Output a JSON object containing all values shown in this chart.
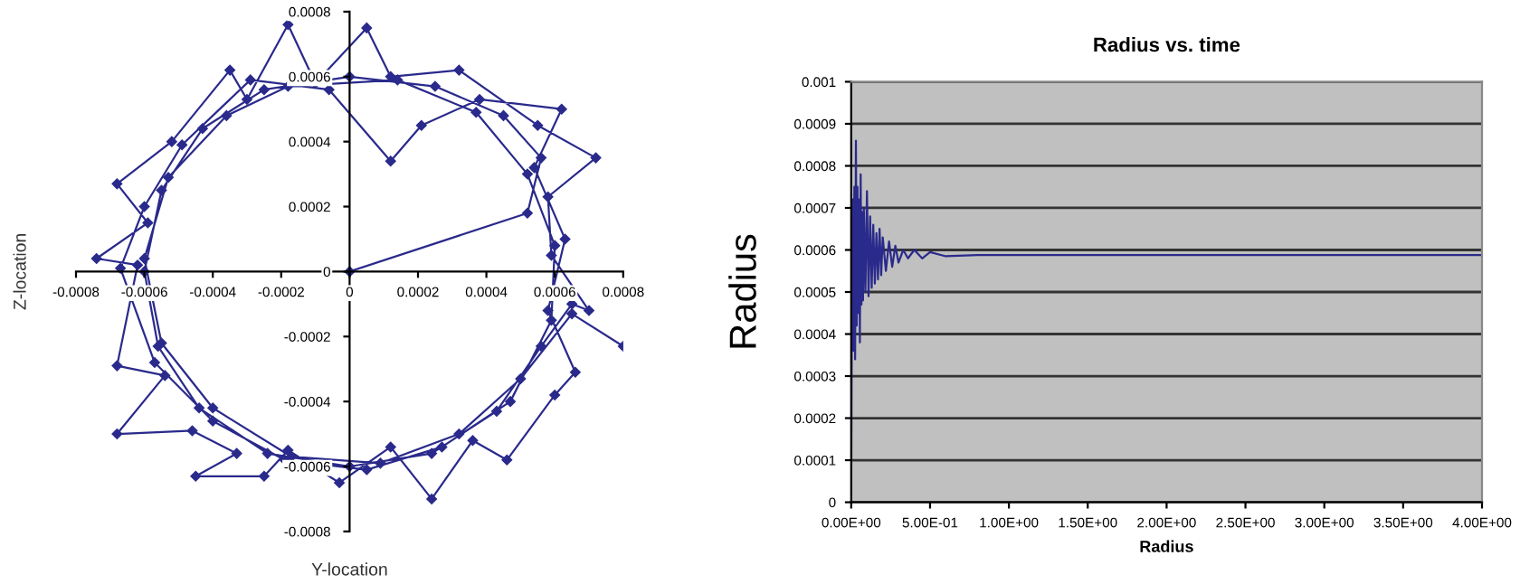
{
  "chart_data": [
    {
      "type": "line",
      "xlabel": "Y-location",
      "ylabel": "Z-location",
      "xlim": [
        -0.0008,
        0.0008
      ],
      "ylim": [
        -0.0008,
        0.0008
      ],
      "xticks": [
        -0.0008,
        -0.0006,
        -0.0004,
        -0.0002,
        0,
        0.0002,
        0.0004,
        0.0006,
        0.0008
      ],
      "yticks": [
        -0.0008,
        -0.0006,
        -0.0004,
        -0.0002,
        0,
        0.0002,
        0.0004,
        0.0006,
        0.0008
      ],
      "grid": false,
      "marker": "diamond",
      "line_style": "solid",
      "series": [
        {
          "color": "#2a2a8c",
          "x": [
            0,
            0.00052,
            0.00056,
            0.00045,
            0.00025,
            0,
            -0.00025,
            -0.00043,
            -0.00055,
            -0.0006,
            -0.00056,
            -0.00044,
            -0.00024,
            0,
            0.00024,
            0.00043,
            0.00056,
            0.00065,
            0.0007,
            0.00059,
            0.00058,
            0.00072,
            0.00055,
            0.00032,
            0.00012,
            5e-05,
            -0.0001,
            -0.00018,
            -0.0003,
            -0.00035,
            -0.00052,
            -0.00068,
            -0.00059,
            -0.00074,
            -0.00062,
            -0.00068,
            -0.00054,
            -0.00068,
            -0.00046,
            -0.00033,
            -0.00045,
            -0.00025,
            -0.00018,
            -3e-05,
            0.00012,
            0.00024,
            0.00036,
            0.00046,
            0.0006,
            0.00066,
            0.00058,
            0.00063,
            0.00054,
            0.00062,
            0.00038,
            0.00021,
            0.00012,
            -6e-05,
            -0.00029,
            -0.00049,
            -0.0006,
            -0.00067,
            -0.00057,
            -0.0004,
            -0.00019,
            5e-05,
            0.00027,
            0.00047,
            0.00059,
            0.0006,
            0.00052,
            0.00037,
            0.00014,
            -0.00018,
            -0.00036,
            -0.00053,
            -0.0006,
            -0.00055,
            -0.0004,
            -0.00017,
            9e-05,
            0.00032,
            0.0005,
            0.00065,
            0.0008
          ],
          "values": [
            0,
            0.00018,
            0.00035,
            0.00048,
            0.00057,
            0.0006,
            0.00056,
            0.00044,
            0.00025,
            0,
            -0.00023,
            -0.00042,
            -0.00056,
            -0.0006,
            -0.00056,
            -0.00043,
            -0.00023,
            -0.0001,
            -0.00012,
            5e-05,
            0.00023,
            0.00035,
            0.00045,
            0.00062,
            0.0006,
            0.00075,
            0.00058,
            0.00076,
            0.00053,
            0.00062,
            0.0004,
            0.00027,
            0.00015,
            4e-05,
            2e-05,
            -0.00029,
            -0.00032,
            -0.0005,
            -0.00049,
            -0.00056,
            -0.00063,
            -0.00063,
            -0.00055,
            -0.00065,
            -0.00054,
            -0.0007,
            -0.00052,
            -0.00058,
            -0.00038,
            -0.00031,
            -0.00012,
            0.0001,
            0.00032,
            0.0005,
            0.00053,
            0.00045,
            0.00034,
            0.00056,
            0.00059,
            0.00039,
            0.0002,
            1e-05,
            -0.00028,
            -0.00046,
            -0.00058,
            -0.00061,
            -0.00054,
            -0.0004,
            -0.00015,
            8e-05,
            0.0003,
            0.00049,
            0.00059,
            0.00057,
            0.00048,
            0.00029,
            4e-05,
            -0.00022,
            -0.00042,
            -0.00057,
            -0.00059,
            -0.0005,
            -0.00033,
            -0.00013,
            -0.00023
          ]
        }
      ]
    },
    {
      "type": "line",
      "title": "Radius vs. time",
      "xlabel": "Radius",
      "ylabel": "Radius",
      "xlim": [
        0,
        4
      ],
      "ylim": [
        0,
        0.001
      ],
      "xticks": [
        {
          "value": 0,
          "label": "0.00E+00"
        },
        {
          "value": 0.5,
          "label": "5.00E-01"
        },
        {
          "value": 1,
          "label": "1.00E+00"
        },
        {
          "value": 1.5,
          "label": "1.50E+00"
        },
        {
          "value": 2,
          "label": "2.00E+00"
        },
        {
          "value": 2.5,
          "label": "2.50E+00"
        },
        {
          "value": 3,
          "label": "3.00E+00"
        },
        {
          "value": 3.5,
          "label": "3.50E+00"
        },
        {
          "value": 4,
          "label": "4.00E+00"
        }
      ],
      "yticks": [
        0,
        0.0001,
        0.0002,
        0.0003,
        0.0004,
        0.0005,
        0.0006,
        0.0007,
        0.0008,
        0.0009,
        0.001
      ],
      "grid": "y",
      "marker": "none",
      "line_style": "solid",
      "series": [
        {
          "color": "#2a2a8c",
          "x": [
            0,
            0.005,
            0.01,
            0.015,
            0.02,
            0.025,
            0.03,
            0.035,
            0.04,
            0.045,
            0.05,
            0.055,
            0.06,
            0.065,
            0.07,
            0.075,
            0.08,
            0.09,
            0.1,
            0.11,
            0.12,
            0.13,
            0.14,
            0.15,
            0.16,
            0.17,
            0.18,
            0.19,
            0.2,
            0.22,
            0.24,
            0.26,
            0.28,
            0.3,
            0.33,
            0.36,
            0.4,
            0.45,
            0.5,
            0.6,
            0.8,
            4.0
          ],
          "values": [
            0,
            0.00058,
            0.00072,
            0.00036,
            0.00075,
            0.00034,
            0.00086,
            0.00042,
            0.00075,
            0.00045,
            0.00072,
            0.00038,
            0.00078,
            0.00047,
            0.00069,
            0.00048,
            0.0007,
            0.0005,
            0.00074,
            0.00049,
            0.00068,
            0.00051,
            0.00066,
            0.00052,
            0.00064,
            0.00053,
            0.00065,
            0.00054,
            0.00063,
            0.00055,
            0.00062,
            0.00056,
            0.00061,
            0.00057,
            0.0006,
            0.00058,
            0.0006,
            0.00058,
            0.000595,
            0.000585,
            0.000588,
            0.000588
          ]
        }
      ]
    }
  ]
}
